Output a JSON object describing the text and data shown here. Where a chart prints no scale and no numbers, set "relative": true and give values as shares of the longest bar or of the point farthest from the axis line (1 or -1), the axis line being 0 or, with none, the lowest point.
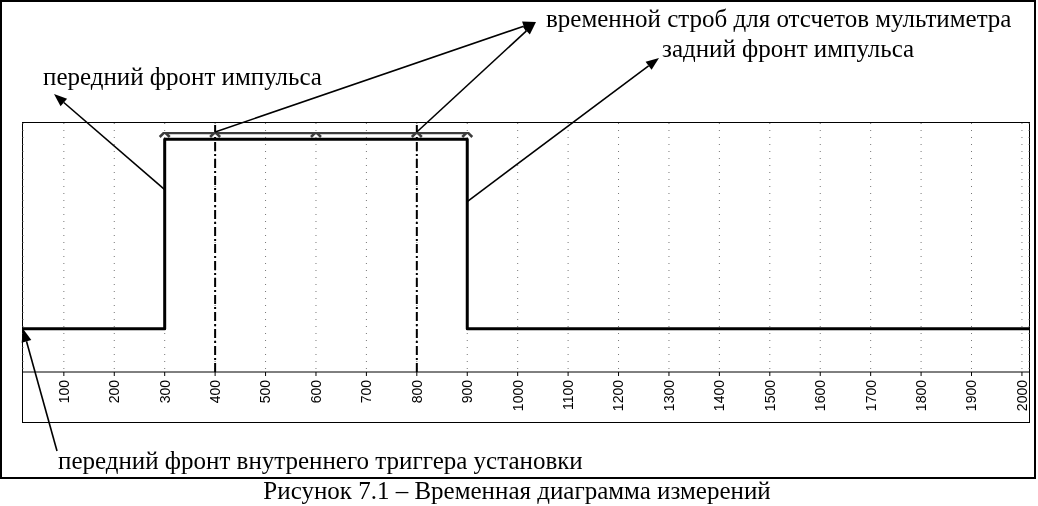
{
  "chart_data": {
    "type": "line",
    "title": "Рисунок 7.1 – Временная диаграмма измерений",
    "relative": true,
    "xlim": [
      19,
      2014
    ],
    "xticks": [
      100,
      200,
      300,
      400,
      500,
      600,
      700,
      800,
      900,
      1000,
      1100,
      1200,
      1300,
      1400,
      1500,
      1600,
      1700,
      1800,
      1900,
      2000
    ],
    "grid": "x",
    "series": [
      {
        "x": [
          19,
          300,
          300,
          900,
          900,
          2014
        ],
        "values": [
          0.18,
          0.18,
          0.97,
          0.97,
          0.18,
          0.18
        ],
        "color": "#000000",
        "marker": "none"
      },
      {
        "x": [
          300,
          400,
          600,
          800,
          900
        ],
        "values": [
          1,
          1,
          1,
          1,
          1
        ],
        "color": "#3c3c3c",
        "marker": "cross"
      }
    ],
    "ref_lines": [
      {
        "axis": "x",
        "value": 400,
        "color": "#000000",
        "line_style": "dashed"
      },
      {
        "axis": "x",
        "value": 800,
        "color": "#000000",
        "line_style": "dashed"
      }
    ],
    "annotations": [
      {
        "text": "передний фронт импульса",
        "x": 300,
        "y": 0.76
      },
      "временной строб для отсчетов мультиметра",
      {
        "text": "задний фронт импульса",
        "x": 900,
        "y": 0.71
      },
      "передний фронт внутреннего триггера установки"
    ]
  }
}
